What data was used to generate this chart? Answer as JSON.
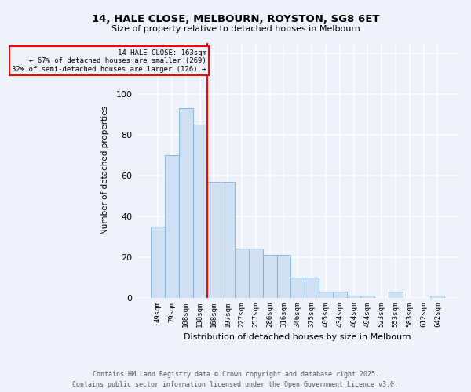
{
  "title1": "14, HALE CLOSE, MELBOURN, ROYSTON, SG8 6ET",
  "title2": "Size of property relative to detached houses in Melbourn",
  "xlabel": "Distribution of detached houses by size in Melbourn",
  "ylabel": "Number of detached properties",
  "categories": [
    "49sqm",
    "79sqm",
    "108sqm",
    "138sqm",
    "168sqm",
    "197sqm",
    "227sqm",
    "257sqm",
    "286sqm",
    "316sqm",
    "346sqm",
    "375sqm",
    "405sqm",
    "434sqm",
    "464sqm",
    "494sqm",
    "523sqm",
    "553sqm",
    "583sqm",
    "612sqm",
    "642sqm"
  ],
  "bar_values": [
    35,
    70,
    93,
    85,
    57,
    57,
    24,
    24,
    21,
    21,
    10,
    10,
    3,
    3,
    1,
    1,
    0,
    3,
    0,
    0,
    1
  ],
  "annotation_text": "14 HALE CLOSE: 163sqm\n← 67% of detached houses are smaller (269)\n32% of semi-detached houses are larger (126) →",
  "bar_color": "#cfe0f2",
  "bar_edge_color": "#7bafd4",
  "line_color": "red",
  "footer1": "Contains HM Land Registry data © Crown copyright and database right 2025.",
  "footer2": "Contains public sector information licensed under the Open Government Licence v3.0.",
  "ylim": [
    0,
    125
  ],
  "yticks": [
    0,
    20,
    40,
    60,
    80,
    100,
    120
  ],
  "background_color": "#eef2fa",
  "grid_color": "#ffffff"
}
